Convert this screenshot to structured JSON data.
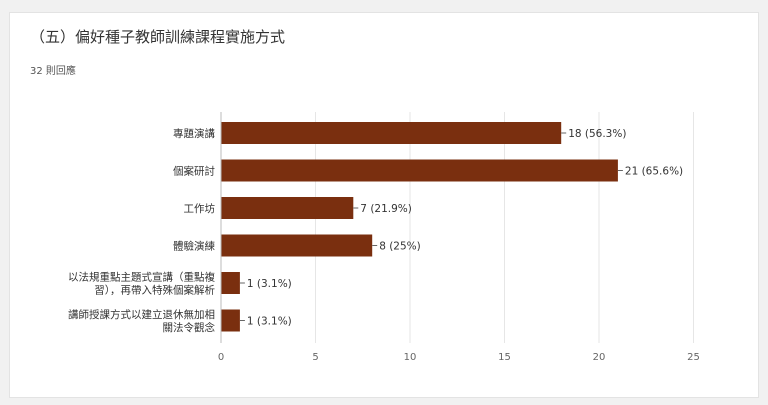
{
  "title": "（五）偏好種子教師訓練課程實施方式",
  "response_count": "32 則回應",
  "colors": {
    "bar": "#7a2f0f",
    "axis": "#bbbbbb",
    "grid": "#e6e6e6"
  },
  "chart_data": {
    "type": "bar",
    "orientation": "horizontal",
    "categories": [
      [
        "專題演講"
      ],
      [
        "個案研討"
      ],
      [
        "工作坊"
      ],
      [
        "體驗演練"
      ],
      [
        "以法規重點主題式宣講（重點複",
        "習），再帶入特殊個案解析"
      ],
      [
        "講師授課方式以建立退休無加相",
        "關法令觀念"
      ]
    ],
    "values": [
      18,
      21,
      7,
      8,
      1,
      1
    ],
    "value_labels": [
      "18 (56.3%)",
      "21 (65.6%)",
      "7 (21.9%)",
      "8 (25%)",
      "1 (3.1%)",
      "1 (3.1%)"
    ],
    "xticks": [
      0,
      5,
      10,
      15,
      20,
      25
    ],
    "xlim": [
      0,
      25
    ],
    "grid": true
  }
}
